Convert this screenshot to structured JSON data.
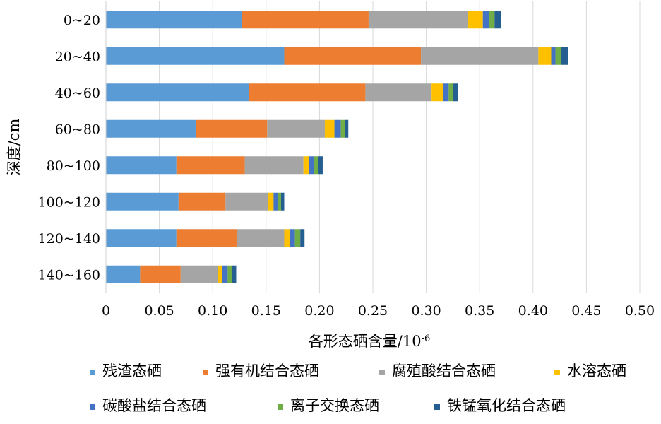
{
  "chart_data": {
    "type": "bar",
    "orientation": "horizontal",
    "stacked": true,
    "categories": [
      "0~20",
      "20~40",
      "40~60",
      "60~80",
      "80~100",
      "100~120",
      "120~140",
      "140~160"
    ],
    "series": [
      {
        "name": "残渣态硒",
        "color": "#5B9BD5",
        "values": [
          0.127,
          0.167,
          0.134,
          0.084,
          0.066,
          0.068,
          0.066,
          0.032
        ]
      },
      {
        "name": "强有机结合态硒",
        "color": "#ED7D31",
        "values": [
          0.119,
          0.128,
          0.109,
          0.067,
          0.064,
          0.044,
          0.057,
          0.038
        ]
      },
      {
        "name": "腐殖酸结合态硒",
        "color": "#A5A5A5",
        "values": [
          0.093,
          0.11,
          0.062,
          0.054,
          0.055,
          0.04,
          0.044,
          0.035
        ]
      },
      {
        "name": "水溶态硒",
        "color": "#FFC000",
        "values": [
          0.014,
          0.012,
          0.011,
          0.009,
          0.005,
          0.005,
          0.005,
          0.004
        ]
      },
      {
        "name": "碳酸盐结合态硒",
        "color": "#4472C4",
        "values": [
          0.006,
          0.004,
          0.005,
          0.006,
          0.005,
          0.004,
          0.005,
          0.005
        ]
      },
      {
        "name": "离子交换态硒",
        "color": "#70AD47",
        "values": [
          0.005,
          0.005,
          0.004,
          0.004,
          0.004,
          0.003,
          0.005,
          0.004
        ]
      },
      {
        "name": "铁锰氧化结合态硒",
        "color": "#255E91",
        "values": [
          0.006,
          0.007,
          0.005,
          0.003,
          0.004,
          0.003,
          0.004,
          0.004
        ]
      }
    ],
    "xlim": [
      0,
      0.5
    ],
    "xticks": [
      "0",
      "0.05",
      "0.10",
      "0.15",
      "0.20",
      "0.25",
      "0.30",
      "0.35",
      "0.40",
      "0.45",
      "0.50"
    ],
    "xlabel": "各形态硒含量/10",
    "xlabel_sup": "-6",
    "ylabel": "深度/cm",
    "grid": "vertical",
    "legend_position": "bottom"
  }
}
